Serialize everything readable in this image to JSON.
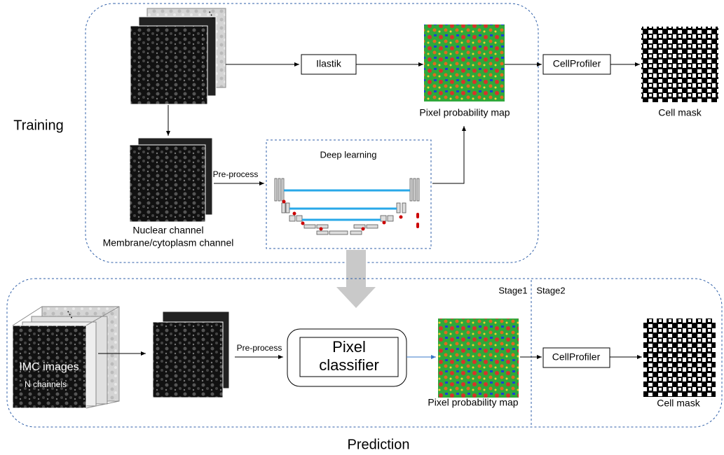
{
  "training": {
    "label": "Training",
    "ilastik": "Ilastik",
    "probability_map": "Pixel probability map",
    "cellprofiler": "CellProfiler",
    "cell_mask": "Cell mask",
    "deep_learning": "Deep learning",
    "preprocess": "Pre-process",
    "channels": [
      "Nuclear channel",
      "Membrane/cytoplasm channel"
    ]
  },
  "prediction": {
    "label": "Prediction",
    "stages": [
      "Stage1",
      "Stage2"
    ],
    "input": [
      "IMC images",
      "N channels"
    ],
    "preprocess": "Pre-process",
    "classifier": [
      "Pixel",
      "classifier"
    ],
    "probability_map": "Pixel probability map",
    "cellprofiler": "CellProfiler",
    "cell_mask": "Cell mask"
  }
}
